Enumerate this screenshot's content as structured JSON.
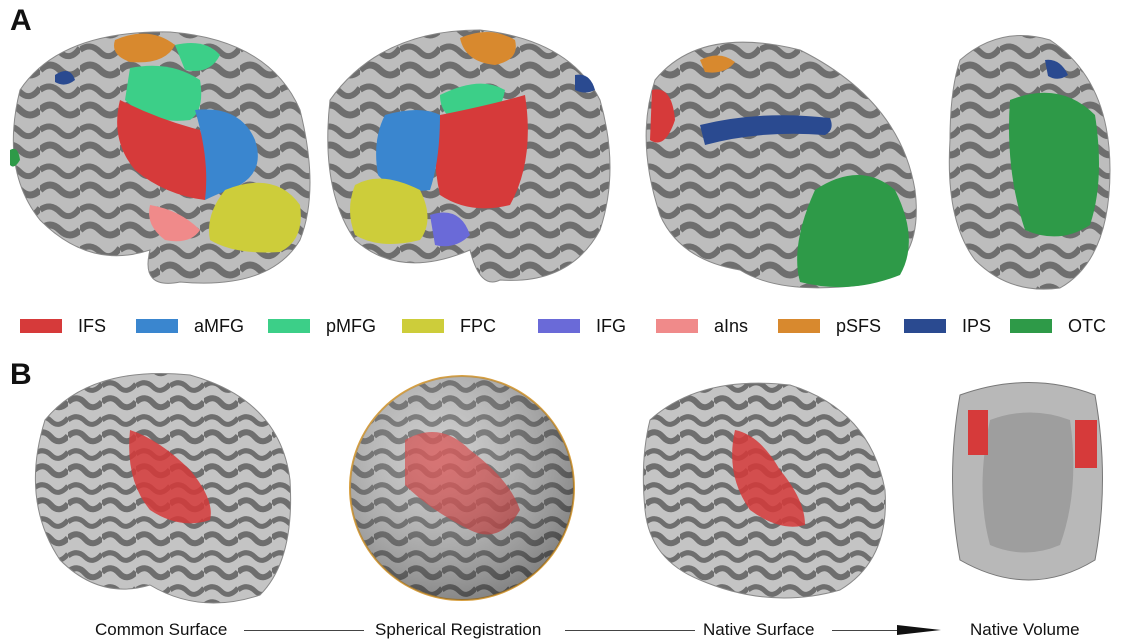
{
  "panels": {
    "a_label": "A",
    "b_label": "B"
  },
  "legend": [
    {
      "label": "IFS",
      "color": "#d63a3a"
    },
    {
      "label": "aMFG",
      "color": "#3a86cf"
    },
    {
      "label": "pMFG",
      "color": "#3ccf88"
    },
    {
      "label": "FPC",
      "color": "#cdcd3a"
    },
    {
      "label": "IFG",
      "color": "#6a6ad8"
    },
    {
      "label": "aIns",
      "color": "#f08a8a"
    },
    {
      "label": "pSFS",
      "color": "#d8892e"
    },
    {
      "label": "IPS",
      "color": "#2a4a90"
    },
    {
      "label": "OTC",
      "color": "#2e9a48"
    }
  ],
  "pipeline": {
    "steps": [
      "Common Surface",
      "Spherical Registration",
      "Native Surface",
      "Native Volume"
    ]
  }
}
